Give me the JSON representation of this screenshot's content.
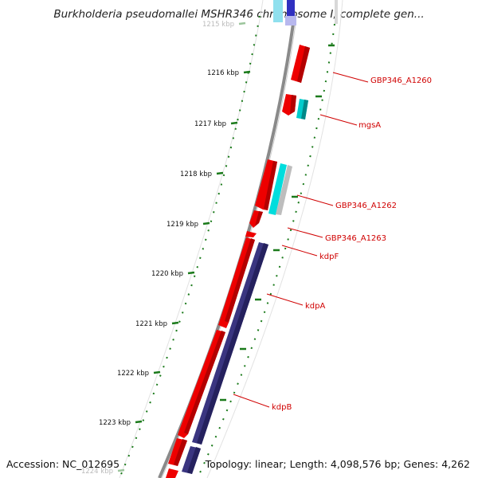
{
  "title": "Burkholderia pseudomallei MSHR346 chromosome I, complete gen...",
  "footer": {
    "accession": "Accession: NC_012695",
    "summary": "Topology: linear; Length: 4,098,576 bp; Genes: 4,262"
  },
  "ruler": [
    {
      "label": "1215 kbp",
      "faint": true
    },
    {
      "label": "1216 kbp",
      "faint": false
    },
    {
      "label": "1217 kbp",
      "faint": false
    },
    {
      "label": "1218 kbp",
      "faint": false
    },
    {
      "label": "1219 kbp",
      "faint": false
    },
    {
      "label": "1220 kbp",
      "faint": false
    },
    {
      "label": "1221 kbp",
      "faint": false
    },
    {
      "label": "1222 kbp",
      "faint": false
    },
    {
      "label": "1223 kbp",
      "faint": false
    },
    {
      "label": "1224 kbp",
      "faint": true
    }
  ],
  "gene_labels": [
    {
      "name": "GBP346_A1260"
    },
    {
      "name": "mgsA"
    },
    {
      "name": "GBP346_A1262"
    },
    {
      "name": "GBP346_A1263"
    },
    {
      "name": "kdpF"
    },
    {
      "name": "kdpA"
    },
    {
      "name": "kdpB"
    }
  ],
  "colors": {
    "forward_gene": "#ee0000",
    "reverse_gene": "#ee0000",
    "cds_cyan": "#00cccc",
    "cds_blue": "#3a3580",
    "ruler": "#1a7a1a",
    "backbone": "#888888",
    "label": "#d00000"
  }
}
